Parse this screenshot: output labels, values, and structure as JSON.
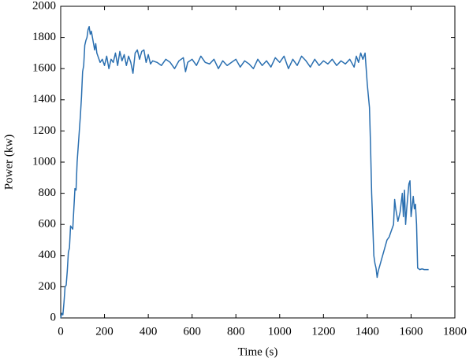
{
  "chart_data": {
    "type": "line",
    "xlabel": "Time (s)",
    "ylabel": "Power (kw)",
    "xlim": [
      0,
      1800
    ],
    "xticks": [
      0,
      200,
      400,
      600,
      800,
      1000,
      1200,
      1400,
      1600,
      1800
    ],
    "ylim": [
      0,
      2000
    ],
    "yticks": [
      0,
      200,
      400,
      600,
      800,
      1000,
      1200,
      1400,
      1600,
      1800,
      2000
    ],
    "x": [
      0,
      5,
      10,
      15,
      20,
      25,
      30,
      35,
      40,
      45,
      50,
      55,
      60,
      65,
      70,
      75,
      80,
      85,
      90,
      95,
      100,
      105,
      110,
      115,
      120,
      125,
      130,
      135,
      140,
      145,
      150,
      155,
      160,
      165,
      170,
      180,
      190,
      200,
      210,
      220,
      230,
      240,
      250,
      260,
      270,
      280,
      290,
      300,
      310,
      320,
      330,
      340,
      350,
      360,
      370,
      380,
      390,
      400,
      410,
      420,
      440,
      460,
      480,
      500,
      520,
      540,
      560,
      570,
      580,
      600,
      620,
      640,
      660,
      680,
      700,
      720,
      740,
      760,
      780,
      800,
      820,
      840,
      860,
      880,
      900,
      920,
      940,
      960,
      980,
      1000,
      1020,
      1040,
      1060,
      1080,
      1100,
      1120,
      1140,
      1160,
      1180,
      1200,
      1220,
      1240,
      1260,
      1280,
      1300,
      1320,
      1340,
      1350,
      1360,
      1370,
      1380,
      1390,
      1395,
      1400,
      1410,
      1415,
      1420,
      1425,
      1430,
      1435,
      1440,
      1445,
      1450,
      1460,
      1470,
      1480,
      1490,
      1500,
      1510,
      1520,
      1525,
      1530,
      1540,
      1550,
      1560,
      1565,
      1570,
      1575,
      1580,
      1590,
      1595,
      1600,
      1610,
      1615,
      1620,
      1625,
      1630,
      1640,
      1650,
      1660,
      1670,
      1680
    ],
    "series": [
      {
        "color": "#2a6fb0",
        "values": [
          0,
          30,
          20,
          100,
          200,
          210,
          300,
          420,
          450,
          590,
          580,
          570,
          700,
          830,
          820,
          1000,
          1100,
          1200,
          1300,
          1420,
          1580,
          1620,
          1750,
          1780,
          1800,
          1850,
          1870,
          1820,
          1840,
          1800,
          1760,
          1720,
          1760,
          1700,
          1680,
          1640,
          1660,
          1620,
          1680,
          1600,
          1660,
          1640,
          1700,
          1620,
          1710,
          1650,
          1690,
          1620,
          1680,
          1640,
          1570,
          1700,
          1720,
          1660,
          1710,
          1720,
          1640,
          1690,
          1630,
          1650,
          1640,
          1620,
          1660,
          1640,
          1600,
          1650,
          1670,
          1580,
          1640,
          1660,
          1620,
          1680,
          1640,
          1630,
          1660,
          1600,
          1650,
          1620,
          1640,
          1660,
          1610,
          1650,
          1630,
          1600,
          1660,
          1620,
          1650,
          1610,
          1670,
          1640,
          1680,
          1600,
          1660,
          1620,
          1680,
          1650,
          1610,
          1660,
          1620,
          1650,
          1630,
          1660,
          1620,
          1650,
          1630,
          1660,
          1610,
          1680,
          1640,
          1700,
          1660,
          1700,
          1600,
          1500,
          1350,
          1100,
          800,
          600,
          400,
          350,
          320,
          260,
          300,
          350,
          400,
          450,
          500,
          520,
          560,
          600,
          760,
          700,
          620,
          680,
          800,
          650,
          820,
          600,
          700,
          860,
          880,
          650,
          780,
          700,
          730,
          600,
          320,
          310,
          315,
          310,
          310,
          310
        ]
      }
    ]
  }
}
